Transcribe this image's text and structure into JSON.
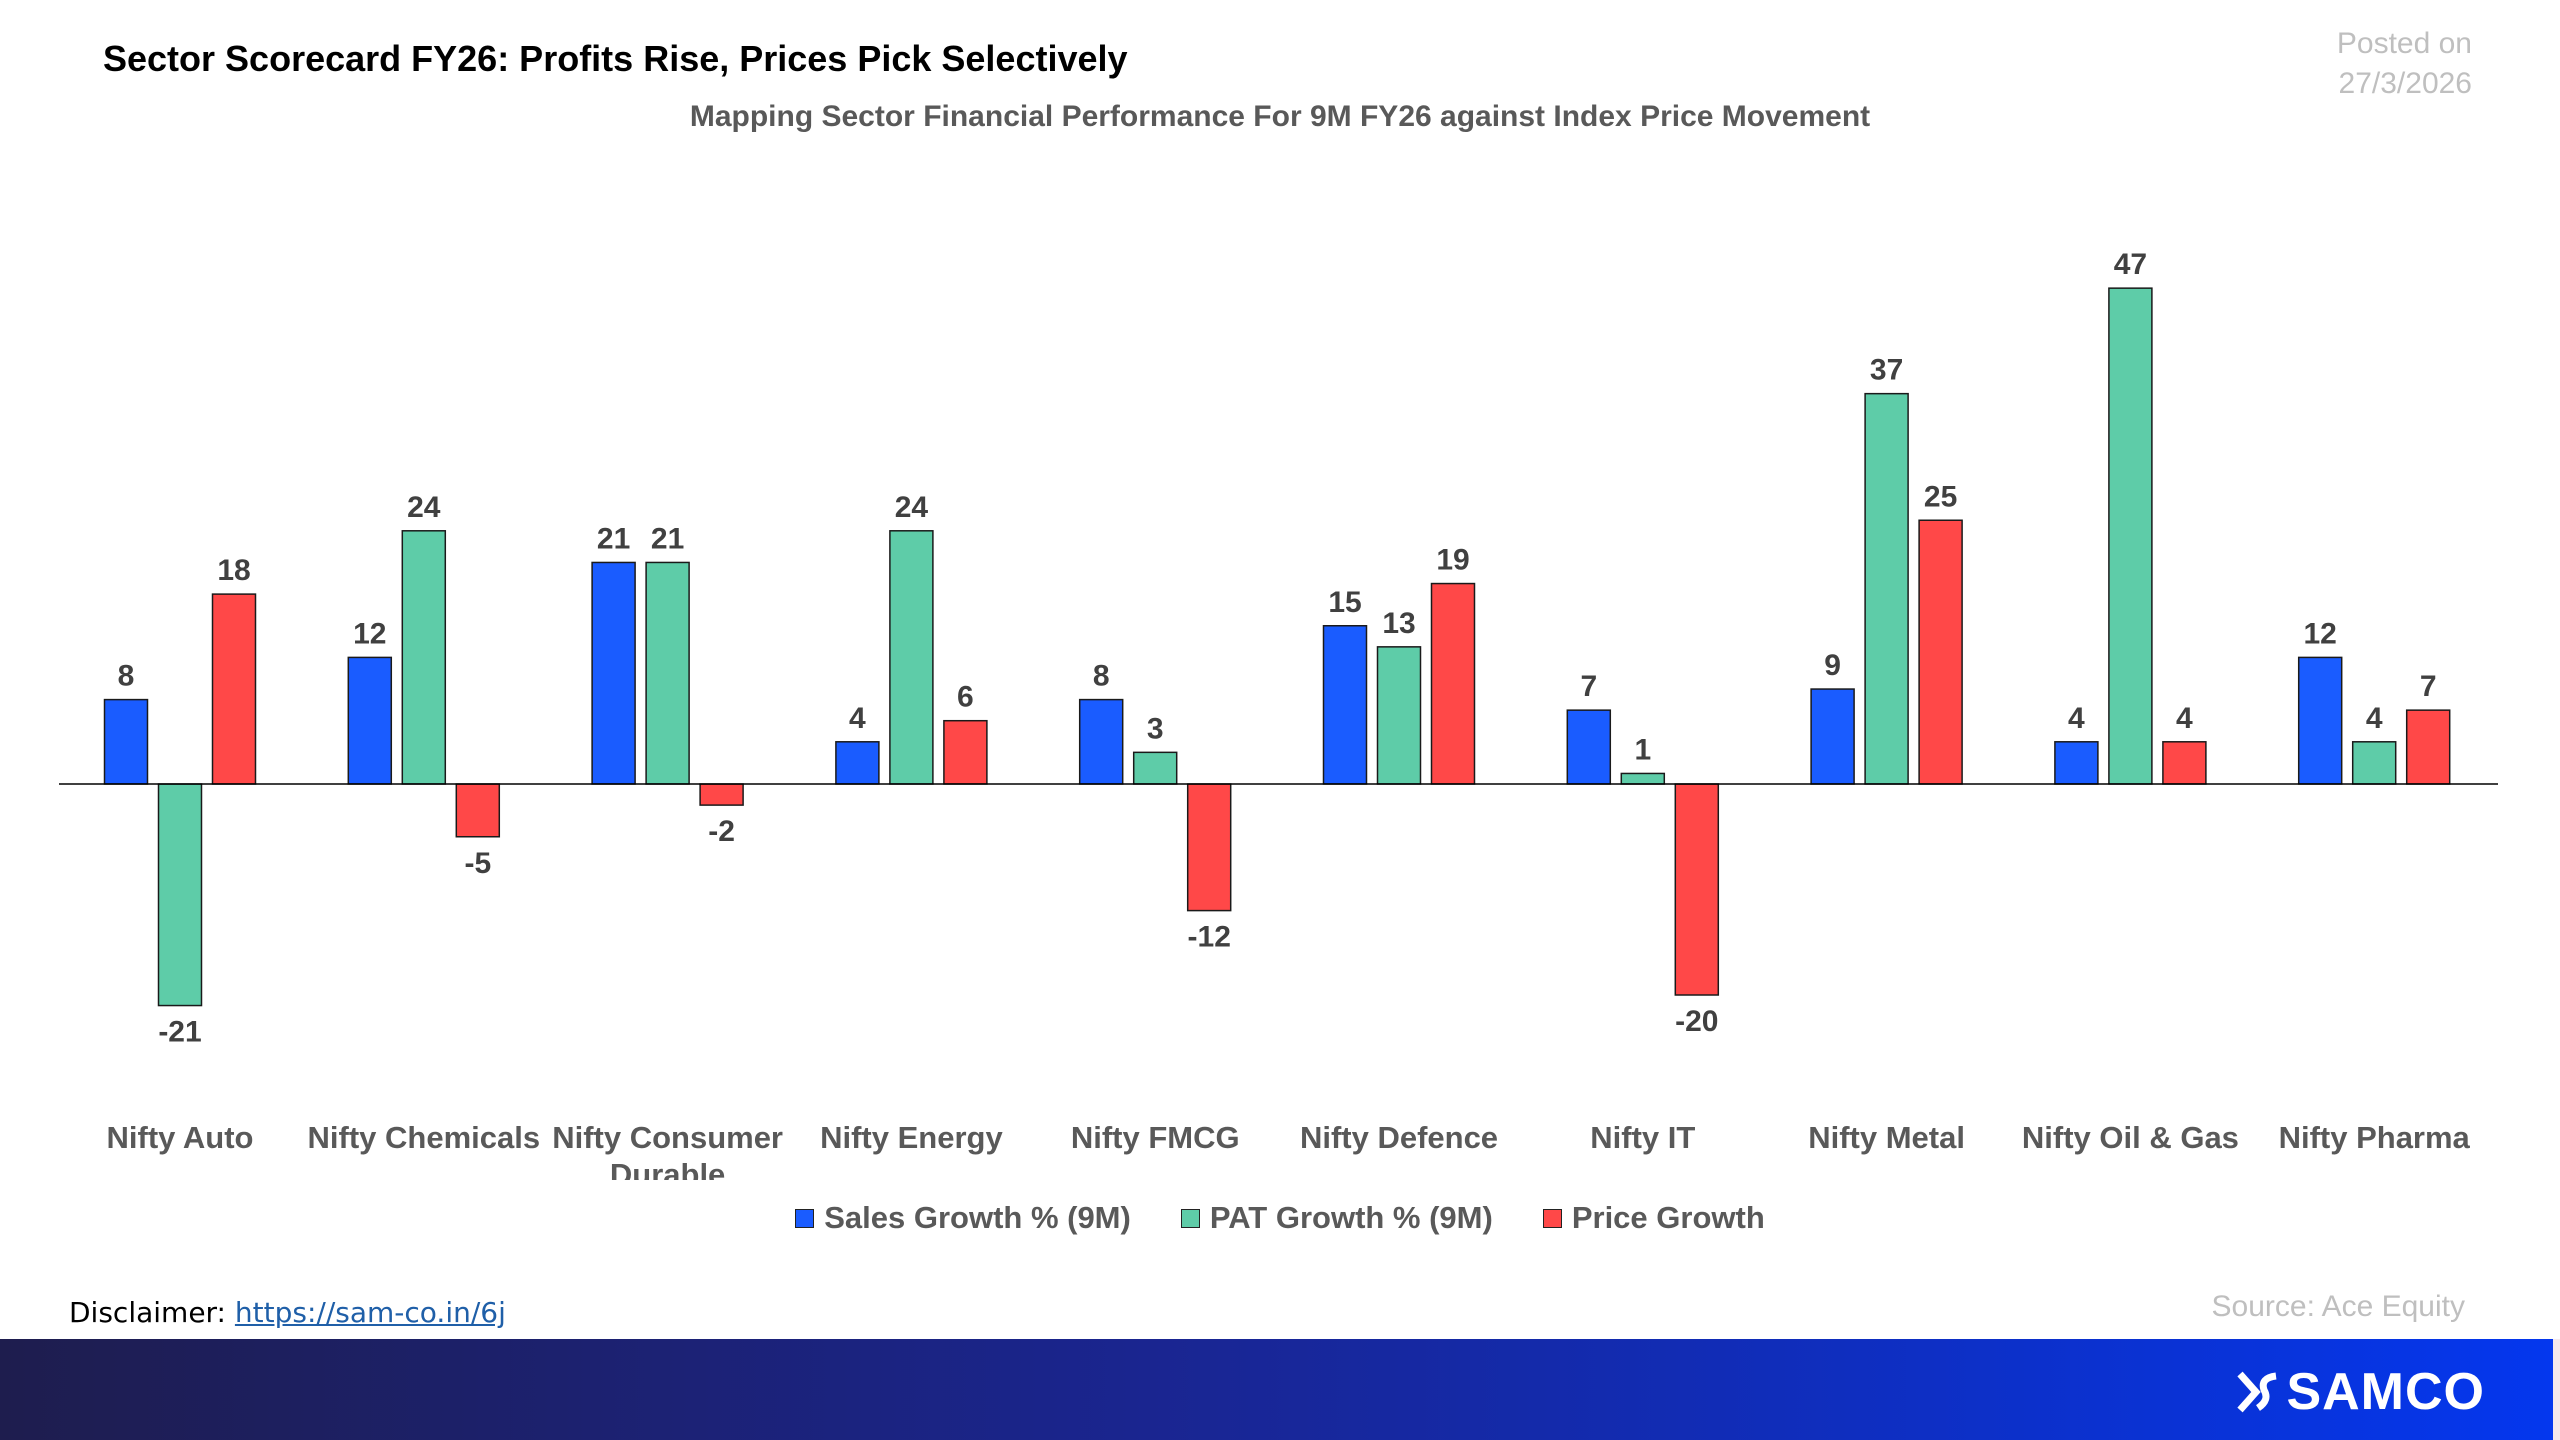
{
  "header": {
    "title": "Sector Scorecard FY26: Profits Rise, Prices Pick Selectively",
    "subtitle": "Mapping Sector Financial Performance For 9M FY26 against Index Price Movement",
    "posted_label": "Posted on",
    "posted_date": "27/3/2026"
  },
  "chart_data": {
    "type": "bar",
    "title": "Mapping Sector Financial Performance For 9M FY26 against Index Price Movement",
    "categories": [
      "Nifty Auto",
      "Nifty Chemicals",
      "Nifty Consumer Durable",
      "Nifty Energy",
      "Nifty FMCG",
      "Nifty Defence",
      "Nifty IT",
      "Nifty Metal",
      "Nifty Oil & Gas",
      "Nifty Pharma"
    ],
    "series": [
      {
        "name": "Sales Growth % (9M)",
        "color": "#1a5cff",
        "values": [
          8,
          12,
          21,
          4,
          8,
          15,
          7,
          9,
          4,
          12
        ]
      },
      {
        "name": "PAT Growth % (9M)",
        "color": "#5ecca8",
        "values": [
          -21,
          24,
          21,
          24,
          3,
          13,
          1,
          37,
          47,
          4
        ]
      },
      {
        "name": "Price Growth",
        "color": "#ff4848",
        "values": [
          18,
          -5,
          -2,
          6,
          -12,
          19,
          -20,
          25,
          4,
          7
        ]
      }
    ],
    "ylim": [
      -30,
      50
    ],
    "grid": false,
    "legend_position": "bottom",
    "data_labels": true
  },
  "footer": {
    "disclaimer_label": "Disclaimer:",
    "disclaimer_link": "https://sam-co.in/6j",
    "source": "Source: Ace Equity",
    "logo_text": "SAMCO"
  }
}
